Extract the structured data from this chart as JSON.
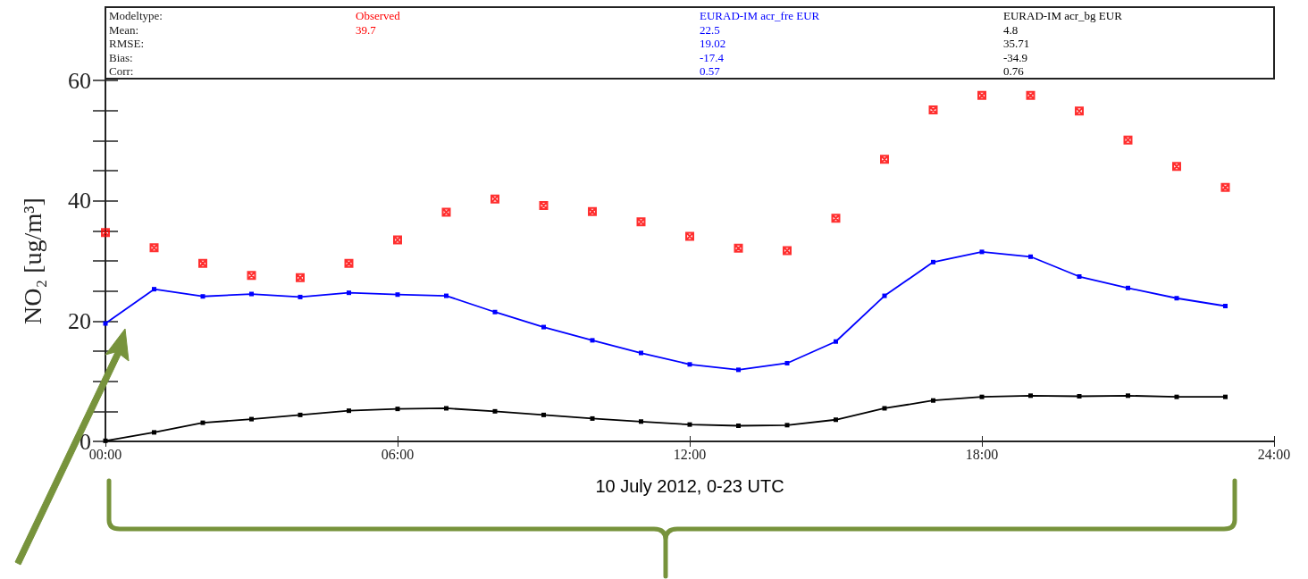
{
  "chart_data": {
    "type": "line",
    "xlabel": "10 July 2012, 0-23 UTC",
    "ylabel": "NO₂ [ug/m³]",
    "x": [
      0,
      1,
      2,
      3,
      4,
      5,
      6,
      7,
      8,
      9,
      10,
      11,
      12,
      13,
      14,
      15,
      16,
      17,
      18,
      19,
      20,
      21,
      22,
      23
    ],
    "series": [
      {
        "name": "Observed",
        "type": "scatter",
        "color": "#ff0000",
        "marker": "cross",
        "values": [
          34.7,
          32.2,
          29.6,
          27.6,
          27.2,
          29.6,
          33.5,
          38.1,
          40.3,
          39.2,
          38.2,
          36.5,
          34.1,
          32.1,
          31.7,
          37.1,
          46.9,
          55.1,
          57.5,
          57.5,
          54.9,
          50.1,
          45.7,
          42.2
        ]
      },
      {
        "name": "EURAD-IM acr_fre EUR",
        "type": "line",
        "color": "#0000ff",
        "marker": "square",
        "values": [
          19.6,
          25.3,
          24.1,
          24.5,
          24.0,
          24.7,
          24.4,
          24.2,
          21.5,
          19.0,
          16.8,
          14.7,
          12.8,
          11.9,
          13.0,
          16.6,
          24.2,
          29.8,
          31.5,
          30.7,
          27.4,
          25.5,
          23.8,
          22.5
        ]
      },
      {
        "name": "EURAD-IM acr_bg EUR",
        "type": "line",
        "color": "#000000",
        "marker": "square",
        "values": [
          0.1,
          1.5,
          3.1,
          3.7,
          4.4,
          5.1,
          5.4,
          5.5,
          5.0,
          4.4,
          3.8,
          3.3,
          2.8,
          2.6,
          2.7,
          3.6,
          5.5,
          6.8,
          7.4,
          7.6,
          7.5,
          7.6,
          7.4,
          7.4
        ]
      }
    ],
    "xlim": [
      0,
      24
    ],
    "xticks": [
      {
        "value": 0,
        "label": "00:00"
      },
      {
        "value": 6,
        "label": "06:00"
      },
      {
        "value": 12,
        "label": "12:00"
      },
      {
        "value": 18,
        "label": "18:00"
      },
      {
        "value": 24,
        "label": "24:00"
      }
    ],
    "ylim": [
      0,
      60
    ],
    "yticks": [
      0,
      {
        "value": 5,
        "label": null
      },
      {
        "value": 10,
        "label": null
      },
      {
        "value": 15,
        "label": null
      },
      20,
      {
        "value": 25,
        "label": null
      },
      {
        "value": 30,
        "label": null
      },
      {
        "value": 35,
        "label": null
      },
      40,
      {
        "value": 45,
        "label": null
      },
      {
        "value": 50,
        "label": null
      },
      {
        "value": 55,
        "label": null
      },
      60
    ],
    "annotations": [
      "Modeltype:",
      "Mean:",
      "RMSE:",
      "Bias:",
      "Corr:",
      "39.7",
      "22.5",
      "19.02",
      "-17.4",
      "0.57",
      "4.8",
      "35.71",
      "-34.9",
      "0.76"
    ],
    "grid": false,
    "legend": false
  }
}
